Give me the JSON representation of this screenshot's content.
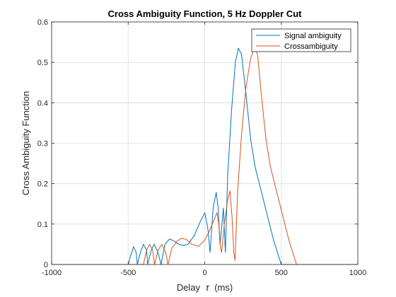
{
  "chart_data": {
    "type": "line",
    "title": "Cross Ambiguity Function, 5 Hz Doppler Cut",
    "xlabel_prefix": "Delay",
    "xlabel_symbol": "τ",
    "xlabel_unit": "(ms)",
    "ylabel": "Cross Ambiguity Function",
    "xlim": [
      -1000,
      1000
    ],
    "ylim": [
      0,
      0.6
    ],
    "xticks": [
      -1000,
      -500,
      0,
      500,
      1000
    ],
    "xtick_labels": [
      "-1000",
      "-500",
      "0",
      "500",
      "1000"
    ],
    "yticks": [
      0,
      0.1,
      0.2,
      0.3,
      0.4,
      0.5,
      0.6
    ],
    "ytick_labels": [
      "0",
      "0.1",
      "0.2",
      "0.3",
      "0.4",
      "0.5",
      "0.6"
    ],
    "grid": true,
    "legend_position": "top-right",
    "series": [
      {
        "name": "Signal ambiguity",
        "color": "#0072BD",
        "points": [
          [
            -1000,
            0
          ],
          [
            -500,
            0
          ],
          [
            -485,
            0.02
          ],
          [
            -465,
            0.044
          ],
          [
            -448,
            0.03
          ],
          [
            -440,
            0
          ],
          [
            -420,
            0.03
          ],
          [
            -400,
            0.05
          ],
          [
            -380,
            0.035
          ],
          [
            -372,
            0
          ],
          [
            -350,
            0.035
          ],
          [
            -330,
            0.05
          ],
          [
            -305,
            0.03
          ],
          [
            -285,
            0
          ],
          [
            -260,
            0.05
          ],
          [
            -230,
            0.063
          ],
          [
            -200,
            0.058
          ],
          [
            -170,
            0.05
          ],
          [
            -140,
            0.047
          ],
          [
            -110,
            0.05
          ],
          [
            -70,
            0.07
          ],
          [
            -30,
            0.105
          ],
          [
            0,
            0.128
          ],
          [
            20,
            0.09
          ],
          [
            35,
            0.03
          ],
          [
            55,
            0.14
          ],
          [
            75,
            0.178
          ],
          [
            88,
            0.14
          ],
          [
            100,
            0.05
          ],
          [
            110,
            0.09
          ],
          [
            122,
            0.14
          ],
          [
            135,
            0.03
          ],
          [
            150,
            0.22
          ],
          [
            175,
            0.38
          ],
          [
            200,
            0.5
          ],
          [
            220,
            0.535
          ],
          [
            240,
            0.52
          ],
          [
            270,
            0.42
          ],
          [
            300,
            0.31
          ],
          [
            330,
            0.24
          ],
          [
            370,
            0.18
          ],
          [
            410,
            0.12
          ],
          [
            450,
            0.06
          ],
          [
            500,
            0
          ],
          [
            1000,
            0
          ]
        ]
      },
      {
        "name": "Crossambiguity",
        "color": "#D95319",
        "points": [
          [
            -1000,
            0
          ],
          [
            -400,
            0
          ],
          [
            -380,
            0.035
          ],
          [
            -360,
            0.05
          ],
          [
            -340,
            0.035
          ],
          [
            -328,
            0
          ],
          [
            -305,
            0.035
          ],
          [
            -280,
            0.05
          ],
          [
            -255,
            0.03
          ],
          [
            -240,
            0
          ],
          [
            -215,
            0.04
          ],
          [
            -180,
            0.058
          ],
          [
            -150,
            0.065
          ],
          [
            -120,
            0.062
          ],
          [
            -85,
            0.05
          ],
          [
            -40,
            0.045
          ],
          [
            0,
            0.06
          ],
          [
            30,
            0.082
          ],
          [
            60,
            0.11
          ],
          [
            80,
            0.128
          ],
          [
            92,
            0.1
          ],
          [
            100,
            0.05
          ],
          [
            110,
            0.03
          ],
          [
            128,
            0.1
          ],
          [
            150,
            0.16
          ],
          [
            165,
            0.182
          ],
          [
            178,
            0.12
          ],
          [
            190,
            0.03
          ],
          [
            198,
            0.01
          ],
          [
            215,
            0.18
          ],
          [
            240,
            0.32
          ],
          [
            270,
            0.44
          ],
          [
            300,
            0.51
          ],
          [
            325,
            0.535
          ],
          [
            345,
            0.52
          ],
          [
            370,
            0.42
          ],
          [
            400,
            0.31
          ],
          [
            430,
            0.24
          ],
          [
            470,
            0.18
          ],
          [
            510,
            0.12
          ],
          [
            550,
            0.06
          ],
          [
            600,
            0
          ],
          [
            1000,
            0
          ]
        ]
      }
    ]
  }
}
